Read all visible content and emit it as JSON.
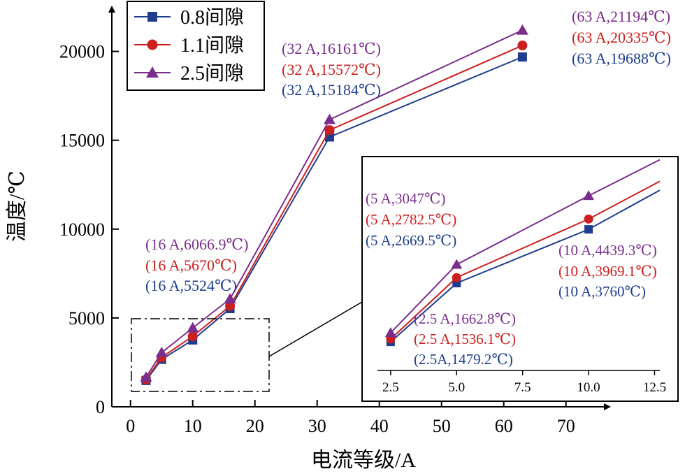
{
  "colors": {
    "s08": "#1f3d8c",
    "s11": "#cc1f1f",
    "s25": "#7a2e8c"
  },
  "chart_data": {
    "type": "line",
    "xlabel": "电流等级/A",
    "ylabel": "温度/℃",
    "xlim": [
      -3,
      77
    ],
    "ylim": [
      0,
      22500
    ],
    "xticks": [
      "0",
      "10",
      "20",
      "30",
      "40",
      "50",
      "60",
      "70"
    ],
    "yticks": [
      "0",
      "5000",
      "10000",
      "15000",
      "20000"
    ],
    "legend_position": "top-left",
    "grid": false,
    "x": [
      2.5,
      5,
      10,
      16,
      32,
      63
    ],
    "series": [
      {
        "name": "0.8间隙",
        "marker": "square",
        "color": "#1f3d8c",
        "values": [
          1479.2,
          2669.5,
          3760,
          5524,
          15184,
          19688
        ]
      },
      {
        "name": "1.1间隙",
        "marker": "circle",
        "color": "#cc1f1f",
        "values": [
          1536.1,
          2782.5,
          3969.1,
          5670,
          15572,
          20335
        ]
      },
      {
        "name": "2.5间隙",
        "marker": "triangle",
        "color": "#7a2e8c",
        "values": [
          1662.8,
          3047,
          4439.3,
          6066.9,
          16161,
          21194
        ]
      }
    ],
    "annotations": {
      "a16": [
        "(16 A,6066.9℃)",
        "(16 A,5670℃)",
        "(16 A,5524℃)"
      ],
      "a32": [
        "(32 A,16161℃)",
        "(32 A,15572℃)",
        "(32 A,15184℃)"
      ],
      "a63": [
        "(63 A,21194℃)",
        "(63 A,20335℃)",
        "(63 A,19688℃)"
      ]
    },
    "inset": {
      "xlim": [
        2,
        12.7
      ],
      "ylim": [
        900,
        5150
      ],
      "xticks": [
        "2.5",
        "5.0",
        "7.5",
        "10.0",
        "12.5"
      ],
      "annotations": {
        "a25": [
          "(2.5 A,1662.8℃)",
          "(2.5 A,1536.1℃)",
          "(2.5A,1479.2℃)"
        ],
        "a5": [
          "(5 A,3047℃)",
          "(5 A,2782.5℃)",
          "(5 A,2669.5℃)"
        ],
        "a10": [
          "(10 A,4439.3℃)",
          "(10 A,3969.1℃)",
          "(10 A,3760℃)"
        ]
      }
    }
  }
}
